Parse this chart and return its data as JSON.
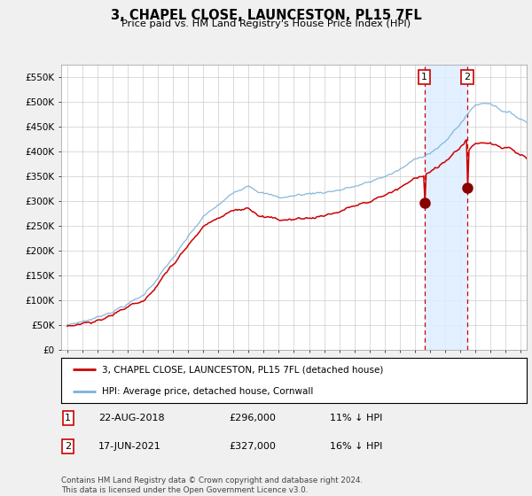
{
  "title": "3, CHAPEL CLOSE, LAUNCESTON, PL15 7FL",
  "subtitle": "Price paid vs. HM Land Registry's House Price Index (HPI)",
  "legend_line1": "3, CHAPEL CLOSE, LAUNCESTON, PL15 7FL (detached house)",
  "legend_line2": "HPI: Average price, detached house, Cornwall",
  "footnote": "Contains HM Land Registry data © Crown copyright and database right 2024.\nThis data is licensed under the Open Government Licence v3.0.",
  "table_rows": [
    {
      "num": "1",
      "date": "22-AUG-2018",
      "price": "£296,000",
      "hpi": "11% ↓ HPI"
    },
    {
      "num": "2",
      "date": "17-JUN-2021",
      "price": "£327,000",
      "hpi": "16% ↓ HPI"
    }
  ],
  "sale1_year": 2018.64,
  "sale1_price": 296000,
  "sale2_year": 2021.46,
  "sale2_price": 327000,
  "hpi_color": "#7ab0d8",
  "sale_color": "#cc0000",
  "highlight_color": "#ddeeff",
  "vline_color": "#cc0000",
  "ylim_max": 575000,
  "ytick_values": [
    0,
    50000,
    100000,
    150000,
    200000,
    250000,
    300000,
    350000,
    400000,
    450000,
    500000,
    550000
  ],
  "ytick_labels": [
    "£0",
    "£50K",
    "£100K",
    "£150K",
    "£200K",
    "£250K",
    "£300K",
    "£350K",
    "£400K",
    "£450K",
    "£500K",
    "£550K"
  ],
  "background_color": "#f0f0f0",
  "plot_bg_color": "#ffffff",
  "grid_color": "#cccccc"
}
